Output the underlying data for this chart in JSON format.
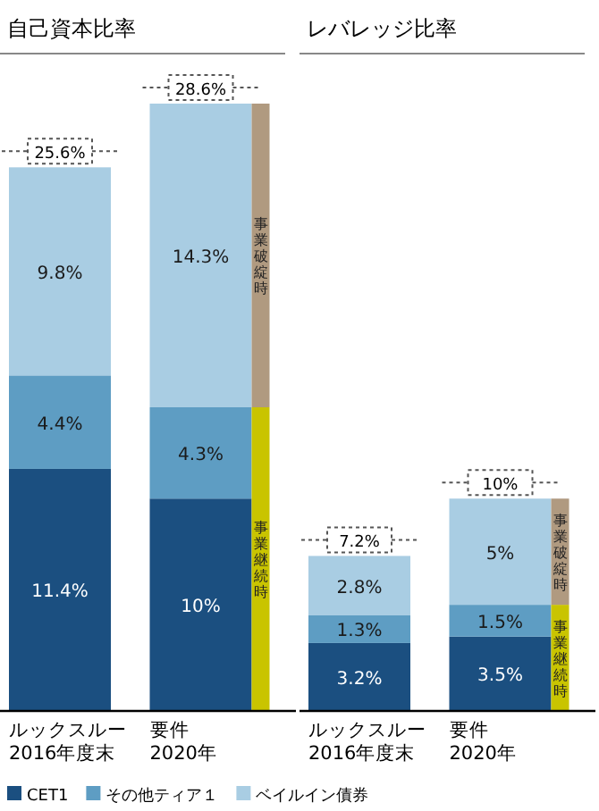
{
  "chart_data": [
    {
      "type": "bar",
      "title": "自己資本比率",
      "stacked": true,
      "legend": "bottom",
      "categories": [
        "ルックスルー\n2016年度末",
        "要件\n2020年"
      ],
      "totals": [
        "25.6%",
        "28.6%"
      ],
      "series": [
        {
          "name": "CET1",
          "color": "#1b4f80",
          "values": [
            11.4,
            10
          ],
          "value_labels": [
            "11.4%",
            "10%"
          ]
        },
        {
          "name": "その他ティア１",
          "color": "#5e9dc3",
          "values": [
            4.4,
            4.3
          ],
          "value_labels": [
            "4.4%",
            "4.3%"
          ]
        },
        {
          "name": "ベイルイン債券",
          "color": "#a9cde3",
          "values": [
            9.8,
            14.3
          ],
          "value_labels": [
            "9.8%",
            "14.3%"
          ]
        }
      ],
      "bands": [
        {
          "axis": "y",
          "from": 0,
          "to": 14.3,
          "label": "事業継続時",
          "color": "#c9c400"
        },
        {
          "axis": "y",
          "from": 14.3,
          "to": 28.6,
          "label": "事業破綻時",
          "color": "#b09a80"
        }
      ]
    },
    {
      "type": "bar",
      "title": "レバレッジ比率",
      "stacked": true,
      "categories": [
        "ルックスルー\n2016年度末",
        "要件\n2020年"
      ],
      "totals": [
        "7.2%",
        "10%"
      ],
      "series": [
        {
          "color": "#1b4f80",
          "values": [
            3.2,
            3.5
          ],
          "value_labels": [
            "3.2%",
            "3.5%"
          ]
        },
        {
          "color": "#5e9dc3",
          "values": [
            1.3,
            1.5
          ],
          "value_labels": [
            "1.3%",
            "1.5%"
          ]
        },
        {
          "color": "#a9cde3",
          "values": [
            2.8,
            5
          ],
          "value_labels": [
            "2.8%",
            "5%"
          ]
        }
      ],
      "bands": [
        {
          "axis": "y",
          "from": 0,
          "to": 5,
          "label": "事業継続時",
          "color": "#c9c400"
        },
        {
          "axis": "y",
          "from": 5,
          "to": 10,
          "label": "事業破綻時",
          "color": "#b09a80"
        }
      ]
    }
  ]
}
